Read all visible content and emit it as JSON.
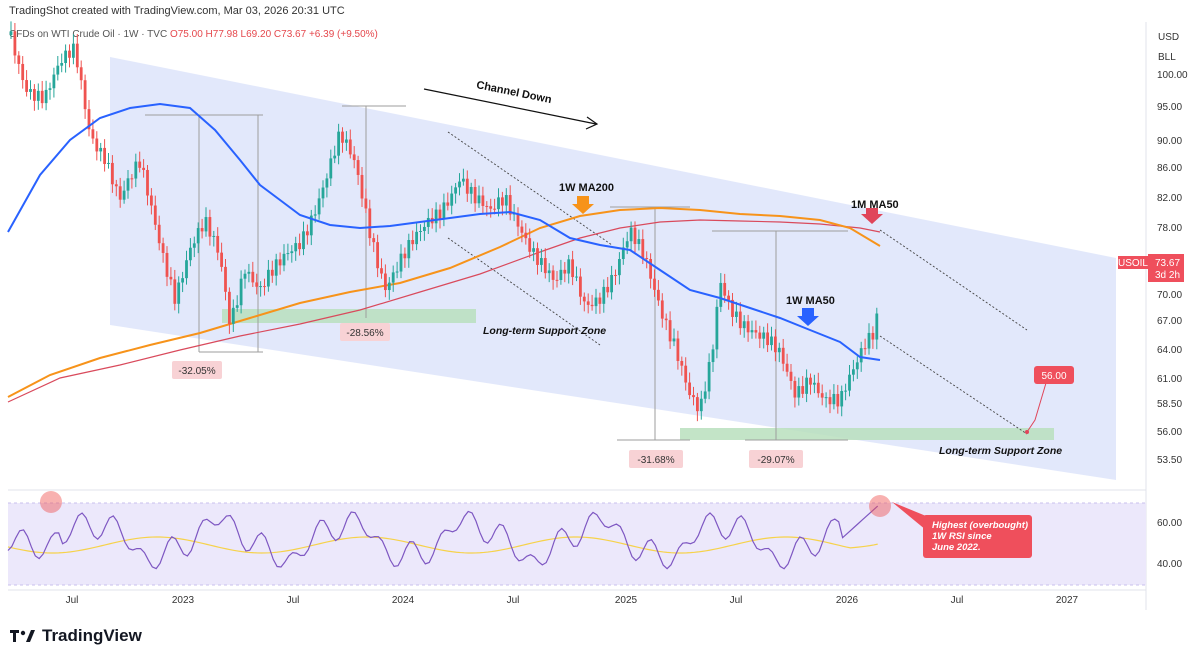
{
  "caption": "TradingShot created with TradingView.com, Mar 03, 2026 20:31 UTC",
  "symbol": {
    "name": "CFDs on WTI Crude Oil · 1W · TVC",
    "ohlc": "O75.00 H77.98 L69.20 C73.67 +6.39 (+9.50%)"
  },
  "price_axis": {
    "currency": "USD",
    "unit": "BLL",
    "ticks": [
      "100.00",
      "95.00",
      "90.00",
      "86.00",
      "82.00",
      "78.00",
      "70.00",
      "67.00",
      "64.00",
      "61.00",
      "58.50",
      "56.00",
      "53.50"
    ],
    "last_price_symbol": "USOIL",
    "last_price": "73.67",
    "last_price_time": "3d 2h"
  },
  "rsi_axis": {
    "ticks": [
      "60.00",
      "40.00"
    ]
  },
  "time_axis": {
    "ticks": [
      "Jul",
      "2023",
      "Jul",
      "2024",
      "Jul",
      "2025",
      "Jul",
      "2026",
      "Jul",
      "2027"
    ]
  },
  "annotations": {
    "channel": "Channel Down",
    "ma200": "1W MA200",
    "ma50_month": "1M MA50",
    "ma50_week": "1W MA50",
    "support_1": "Long-term Support Zone",
    "support_2": "Long-term Support Zone",
    "target": "56.00",
    "drop_1": "-32.05%",
    "drop_2": "-28.56%",
    "drop_3": "-31.68%",
    "drop_4": "-29.07%",
    "rsi_note_1": "Highest (overbought)",
    "rsi_note_2": "1W RSI since",
    "rsi_note_3": "June 2022."
  },
  "brand": "TradingView",
  "colors": {
    "up": "#26a69a",
    "down": "#ef5350",
    "ma50w": "#2962ff",
    "ma200w": "#f7931a",
    "ma50m": "#e0455a",
    "channel": "#dfe6fb",
    "support": "#a5d6a7",
    "rsi": "#7e57c2",
    "rsi_ma": "#f6d24a"
  },
  "chart_data": {
    "type": "candlestick",
    "x_ticks": [
      "Jul",
      "2023",
      "Jul",
      "2024",
      "Jul",
      "2025",
      "Jul",
      "2026",
      "Jul",
      "2027"
    ],
    "y_ticks": [
      100,
      95,
      90,
      86,
      82,
      78,
      70,
      67,
      64,
      61,
      58.5,
      56,
      53.5
    ],
    "last_price": 73.67,
    "target": 56.0,
    "rsi_ticks": [
      60,
      40
    ]
  }
}
